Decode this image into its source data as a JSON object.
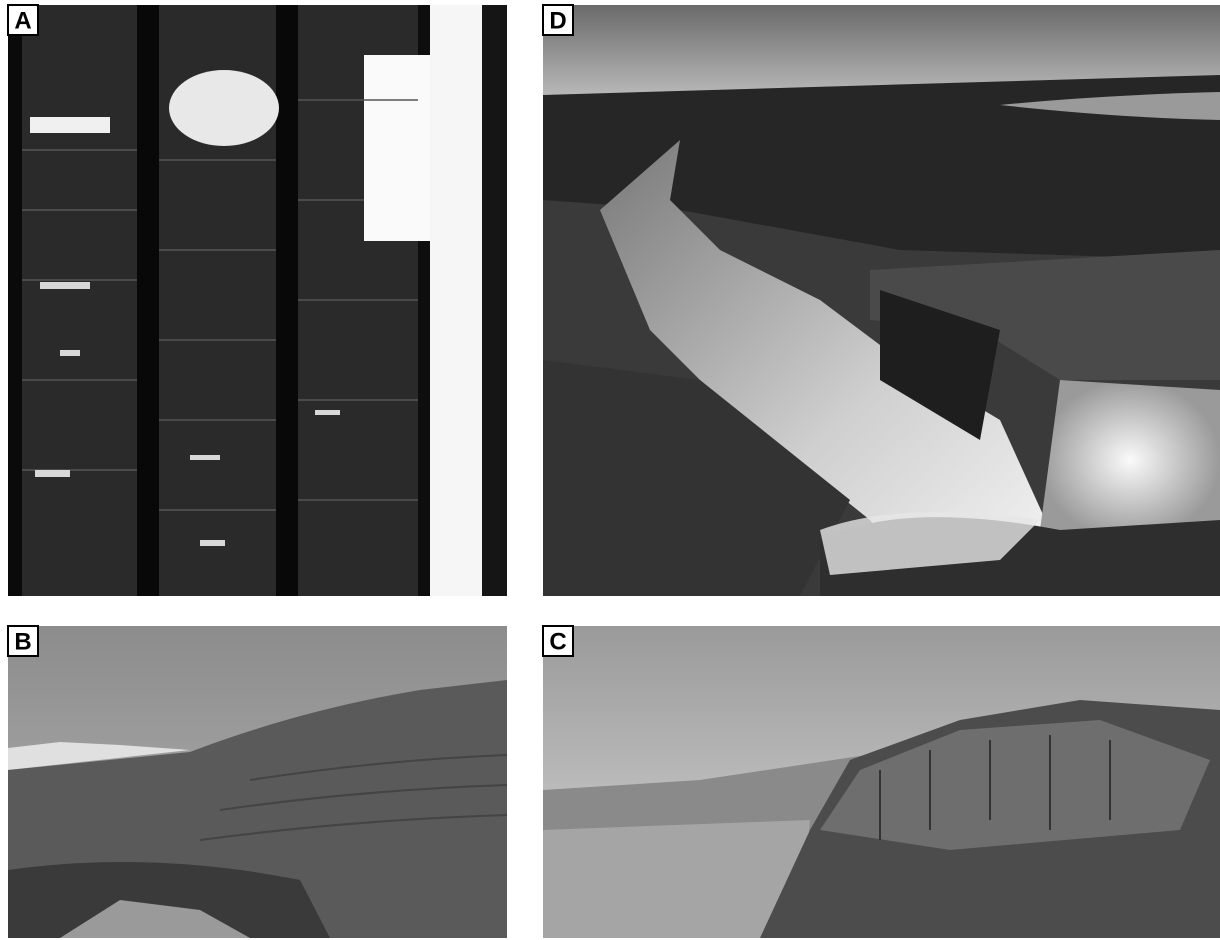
{
  "panels": [
    {
      "label": "A"
    },
    {
      "label": "D"
    },
    {
      "label": "B"
    },
    {
      "label": "C"
    }
  ]
}
